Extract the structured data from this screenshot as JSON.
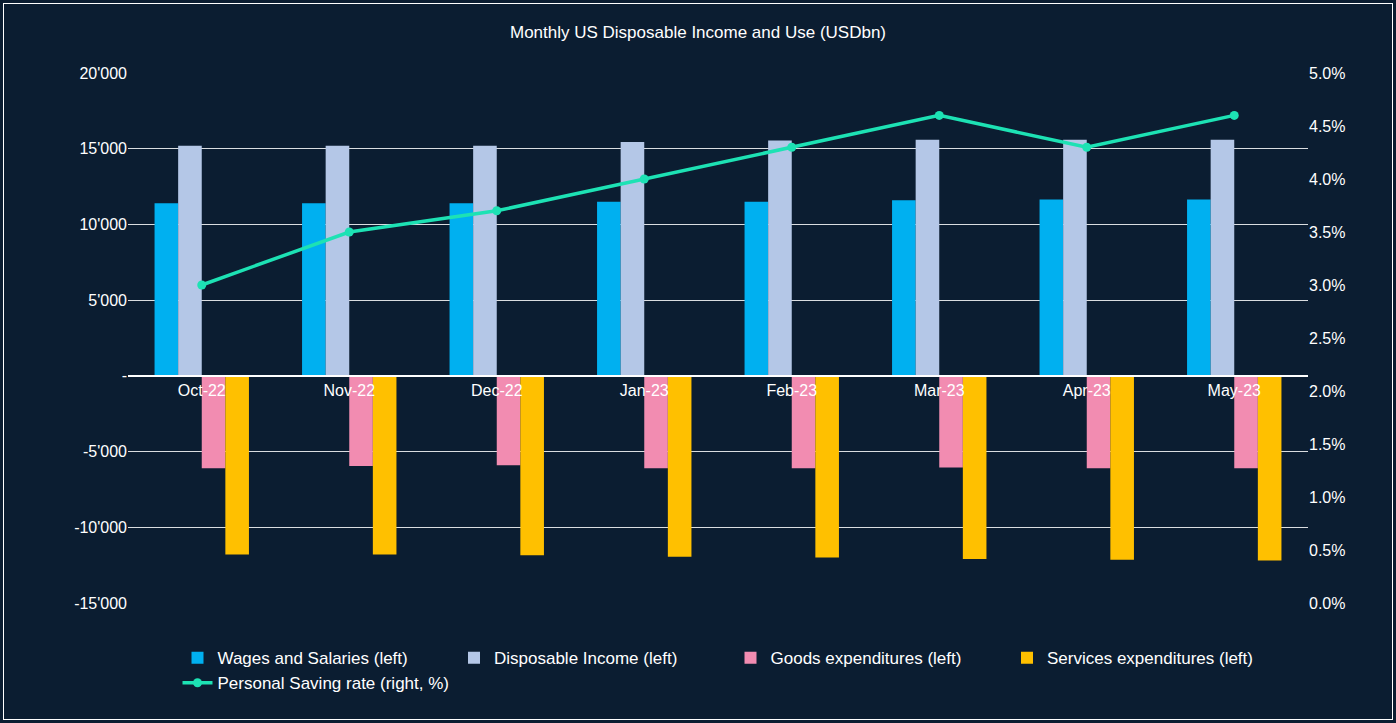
{
  "chart_data": {
    "type": "bar",
    "title": "Monthly US Disposable Income and Use (USDbn)",
    "categories": [
      "Oct-22",
      "Nov-22",
      "Dec-22",
      "Jan-23",
      "Feb-23",
      "Mar-23",
      "Apr-23",
      "May-23"
    ],
    "series": [
      {
        "name": "Wages and Salaries (left)",
        "type": "bar",
        "color": "#00b0f0",
        "values": [
          11400,
          11400,
          11400,
          11500,
          11500,
          11600,
          11650,
          11650
        ]
      },
      {
        "name": "Disposable Income (left)",
        "type": "bar",
        "color": "#b4c7e7",
        "values": [
          15200,
          15200,
          15200,
          15450,
          15550,
          15600,
          15600,
          15600
        ]
      },
      {
        "name": "Goods expenditures (left)",
        "type": "bar",
        "color": "#f28cb1",
        "values": [
          -6100,
          -5950,
          -5900,
          -6100,
          -6100,
          -6050,
          -6100,
          -6100
        ]
      },
      {
        "name": "Services expenditures (left)",
        "type": "bar",
        "color": "#ffc000",
        "values": [
          -11800,
          -11800,
          -11850,
          -11950,
          -12000,
          -12100,
          -12150,
          -12200
        ]
      },
      {
        "name": "Personal Saving rate (right, %)",
        "type": "line",
        "axis": "y2",
        "color": "#1de2b4",
        "marker": "circle",
        "line_style": "solid",
        "values": [
          3.0,
          3.5,
          3.7,
          4.0,
          4.3,
          4.6,
          4.3,
          4.6
        ]
      }
    ],
    "ylim": [
      -15000,
      20000
    ],
    "yticks": [
      {
        "value": -15000,
        "label": "-15'000"
      },
      {
        "value": -10000,
        "label": "-10'000"
      },
      {
        "value": -5000,
        "label": "-5'000"
      },
      {
        "value": 0,
        "label": "-"
      },
      {
        "value": 5000,
        "label": "5'000"
      },
      {
        "value": 10000,
        "label": "10'000"
      },
      {
        "value": 15000,
        "label": "15'000"
      },
      {
        "value": 20000,
        "label": "20'000"
      }
    ],
    "y2lim": [
      0,
      5
    ],
    "y2ticks": [
      {
        "value": 0,
        "label": "0.0%"
      },
      {
        "value": 0.5,
        "label": "0.5%"
      },
      {
        "value": 1,
        "label": "1.0%"
      },
      {
        "value": 1.5,
        "label": "1.5%"
      },
      {
        "value": 2,
        "label": "2.0%"
      },
      {
        "value": 2.5,
        "label": "2.5%"
      },
      {
        "value": 3,
        "label": "3.0%"
      },
      {
        "value": 3.5,
        "label": "3.5%"
      },
      {
        "value": 4,
        "label": "4.0%"
      },
      {
        "value": 4.5,
        "label": "4.5%"
      },
      {
        "value": 5,
        "label": "5.0%"
      }
    ],
    "grid": true,
    "legend": "bottom"
  }
}
